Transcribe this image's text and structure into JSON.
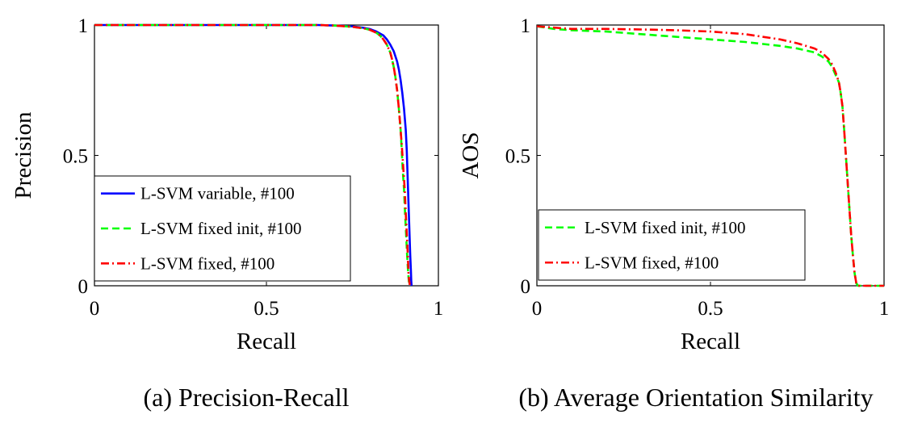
{
  "chart_data": [
    {
      "type": "line",
      "caption": "(a) Precision-Recall",
      "xlabel": "Recall",
      "ylabel": "Precision",
      "xlim": [
        0,
        1
      ],
      "ylim": [
        0,
        1
      ],
      "xticks": [
        "0",
        "0.5",
        "1"
      ],
      "yticks": [
        "0",
        "0.5",
        "1"
      ],
      "grid": false,
      "legend_position": "bottom-left",
      "series": [
        {
          "name": "L-SVM variable, #100",
          "color": "#0000ff",
          "dash": "solid",
          "x": [
            0,
            0.1,
            0.2,
            0.3,
            0.4,
            0.5,
            0.6,
            0.65,
            0.7,
            0.75,
            0.78,
            0.8,
            0.82,
            0.84,
            0.85,
            0.86,
            0.87,
            0.88,
            0.885,
            0.89,
            0.895,
            0.9,
            0.905,
            0.908,
            0.91,
            0.912,
            0.914,
            0.916,
            0.918,
            0.92,
            0.921,
            0.922
          ],
          "y": [
            1,
            1,
            1,
            1,
            1,
            1,
            1,
            1,
            0.998,
            0.995,
            0.99,
            0.985,
            0.975,
            0.96,
            0.945,
            0.925,
            0.9,
            0.86,
            0.83,
            0.79,
            0.74,
            0.68,
            0.6,
            0.52,
            0.44,
            0.36,
            0.28,
            0.2,
            0.12,
            0.06,
            0.02,
            0
          ]
        },
        {
          "name": "L-SVM fixed init, #100",
          "color": "#00ff00",
          "dash": "dashed",
          "x": [
            0,
            0.1,
            0.2,
            0.3,
            0.4,
            0.5,
            0.6,
            0.65,
            0.7,
            0.75,
            0.78,
            0.8,
            0.82,
            0.83,
            0.84,
            0.85,
            0.86,
            0.865,
            0.87,
            0.875,
            0.88,
            0.885,
            0.89,
            0.893,
            0.896,
            0.9,
            0.903,
            0.906,
            0.909,
            0.912,
            0.914,
            0.916
          ],
          "y": [
            1,
            1,
            1,
            1,
            1,
            1,
            1,
            1,
            0.998,
            0.993,
            0.988,
            0.982,
            0.97,
            0.96,
            0.945,
            0.925,
            0.895,
            0.87,
            0.84,
            0.8,
            0.75,
            0.68,
            0.6,
            0.53,
            0.45,
            0.37,
            0.28,
            0.2,
            0.12,
            0.05,
            0.02,
            0
          ]
        },
        {
          "name": "L-SVM fixed, #100",
          "color": "#ff0000",
          "dash": "dashdot",
          "x": [
            0,
            0.1,
            0.2,
            0.3,
            0.4,
            0.5,
            0.6,
            0.65,
            0.7,
            0.75,
            0.78,
            0.8,
            0.82,
            0.83,
            0.84,
            0.85,
            0.86,
            0.865,
            0.87,
            0.875,
            0.88,
            0.885,
            0.89,
            0.894,
            0.898,
            0.902,
            0.905,
            0.908,
            0.911,
            0.913,
            0.915,
            0.917
          ],
          "y": [
            1,
            1,
            1,
            1,
            1,
            1,
            1,
            1,
            0.998,
            0.993,
            0.988,
            0.982,
            0.97,
            0.96,
            0.945,
            0.925,
            0.895,
            0.87,
            0.84,
            0.8,
            0.75,
            0.68,
            0.6,
            0.53,
            0.45,
            0.37,
            0.28,
            0.2,
            0.12,
            0.05,
            0.02,
            0
          ]
        }
      ]
    },
    {
      "type": "line",
      "caption": "(b) Average Orientation Similarity",
      "xlabel": "Recall",
      "ylabel": "AOS",
      "xlim": [
        0,
        1
      ],
      "ylim": [
        0,
        1
      ],
      "xticks": [
        "0",
        "0.5",
        "1"
      ],
      "yticks": [
        "0",
        "0.5",
        "1"
      ],
      "grid": false,
      "legend_position": "bottom-left",
      "series": [
        {
          "name": "L-SVM fixed init, #100",
          "color": "#00ff00",
          "dash": "dashed",
          "x": [
            0,
            0.05,
            0.1,
            0.2,
            0.3,
            0.4,
            0.5,
            0.6,
            0.7,
            0.75,
            0.8,
            0.82,
            0.84,
            0.85,
            0.86,
            0.87,
            0.875,
            0.88,
            0.885,
            0.89,
            0.895,
            0.9,
            0.905,
            0.91,
            0.915,
            0.92,
            0.925,
            0.93,
            1.0
          ],
          "y": [
            0.995,
            0.985,
            0.98,
            0.975,
            0.965,
            0.955,
            0.945,
            0.935,
            0.92,
            0.91,
            0.895,
            0.88,
            0.86,
            0.84,
            0.81,
            0.78,
            0.74,
            0.69,
            0.6,
            0.5,
            0.4,
            0.3,
            0.2,
            0.12,
            0.05,
            0.01,
            0,
            0,
            0
          ]
        },
        {
          "name": "L-SVM fixed, #100",
          "color": "#ff0000",
          "dash": "dashdot",
          "x": [
            0,
            0.05,
            0.1,
            0.2,
            0.3,
            0.4,
            0.5,
            0.6,
            0.7,
            0.75,
            0.8,
            0.82,
            0.84,
            0.85,
            0.86,
            0.87,
            0.875,
            0.88,
            0.885,
            0.89,
            0.895,
            0.9,
            0.905,
            0.91,
            0.915,
            0.92,
            0.925,
            0.93,
            1.0
          ],
          "y": [
            0.995,
            0.99,
            0.985,
            0.985,
            0.983,
            0.98,
            0.975,
            0.965,
            0.945,
            0.93,
            0.91,
            0.895,
            0.87,
            0.85,
            0.82,
            0.78,
            0.74,
            0.69,
            0.6,
            0.5,
            0.4,
            0.3,
            0.2,
            0.12,
            0.05,
            0.01,
            0,
            0,
            0
          ]
        }
      ]
    }
  ]
}
